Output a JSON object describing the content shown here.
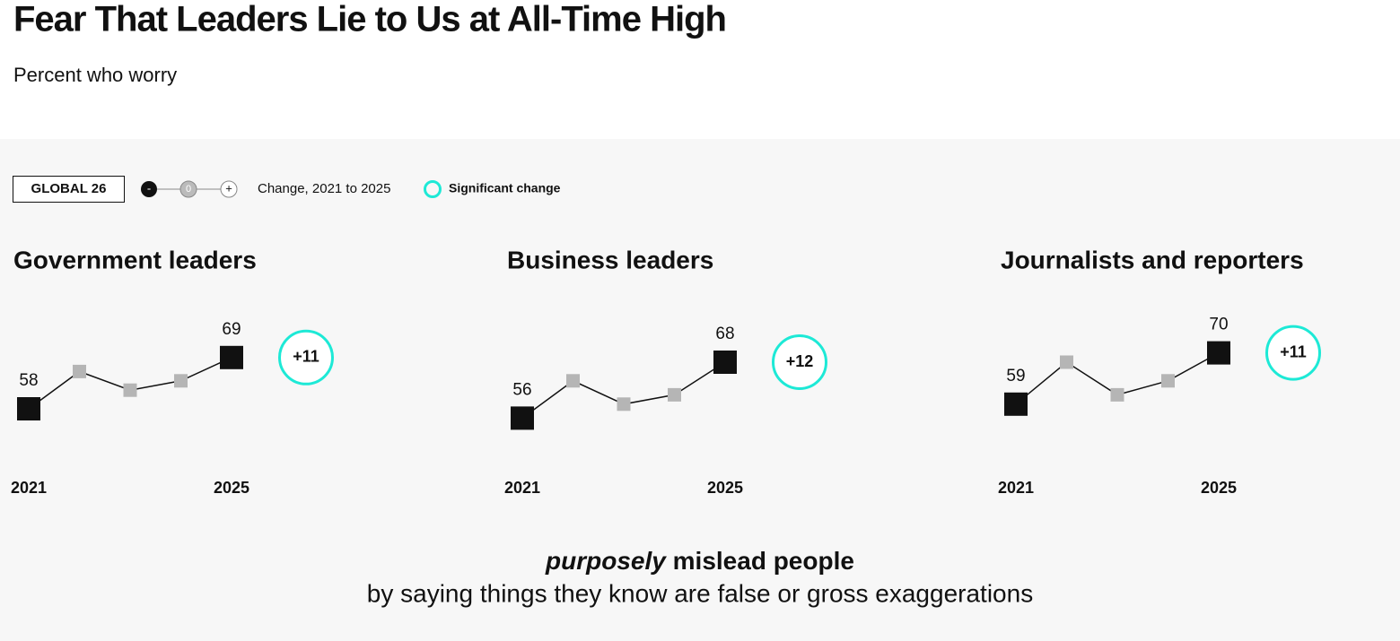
{
  "header": {
    "title": "Fear That Leaders Lie to Us at All-Time High",
    "subtitle": "Percent who worry"
  },
  "legend": {
    "scope": "GLOBAL 26",
    "minus": "-",
    "zero": "0",
    "plus": "+",
    "change_text": "Change, 2021 to 2025",
    "significant": "Significant change"
  },
  "chart_data": [
    {
      "type": "line",
      "title": "Government leaders",
      "categories": [
        "2021",
        null,
        null,
        null,
        "2025"
      ],
      "values": [
        58,
        66,
        62,
        64,
        69
      ],
      "ylim": [
        50,
        75
      ],
      "color": "#111111",
      "point_color": "#b5b5b5",
      "annotation": "+11",
      "annotation_color": "#1de9d6"
    },
    {
      "type": "line",
      "title": "Business leaders",
      "categories": [
        "2021",
        null,
        null,
        null,
        "2025"
      ],
      "values": [
        56,
        64,
        59,
        61,
        68
      ],
      "ylim": [
        50,
        75
      ],
      "color": "#111111",
      "point_color": "#b5b5b5",
      "annotation": "+12",
      "annotation_color": "#1de9d6"
    },
    {
      "type": "line",
      "title": "Journalists and reporters",
      "categories": [
        "2021",
        null,
        null,
        null,
        "2025"
      ],
      "values": [
        59,
        68,
        61,
        64,
        70
      ],
      "ylim": [
        50,
        75
      ],
      "color": "#111111",
      "point_color": "#b5b5b5",
      "annotation": "+11",
      "annotation_color": "#1de9d6"
    }
  ],
  "footer": {
    "emphasis": "purposely",
    "rest": "mislead people",
    "line2": "by saying things they know are false or gross exaggerations"
  }
}
